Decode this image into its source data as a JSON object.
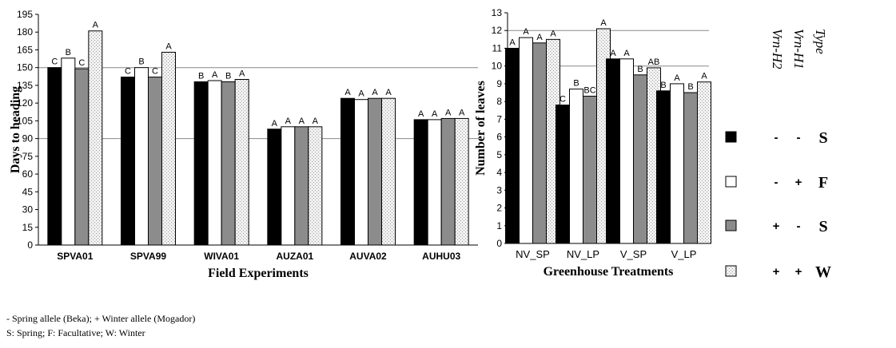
{
  "chart_data": [
    {
      "type": "bar",
      "xlabel": "Field Experiments",
      "ylabel": "Days to heading",
      "ylim": [
        0,
        195
      ],
      "yticks": [
        0,
        15,
        30,
        45,
        60,
        75,
        90,
        105,
        120,
        135,
        150,
        165,
        180,
        195
      ],
      "gridlines": [
        90,
        150
      ],
      "categories": [
        "SPVA01",
        "SPVA99",
        "WIVA01",
        "AUZA01",
        "AUVA02",
        "AUHU03"
      ],
      "series": [
        {
          "values": [
            150,
            142,
            138,
            98,
            124,
            106
          ],
          "letters": [
            "C",
            "C",
            "B",
            "A",
            "A",
            "A"
          ]
        },
        {
          "values": [
            158,
            150,
            139,
            100,
            123,
            106
          ],
          "letters": [
            "B",
            "B",
            "A",
            "A",
            "A",
            "A"
          ]
        },
        {
          "values": [
            149,
            142,
            138,
            100,
            124,
            107
          ],
          "letters": [
            "C",
            "C",
            "B",
            "A",
            "A",
            "A"
          ]
        },
        {
          "values": [
            181,
            163,
            140,
            100,
            124,
            107
          ],
          "letters": [
            "A",
            "A",
            "A",
            "A",
            "A",
            "A"
          ]
        }
      ]
    },
    {
      "type": "bar",
      "xlabel": "Greenhouse Treatments",
      "ylabel": "Number of leaves",
      "ylim": [
        0,
        13
      ],
      "yticks": [
        0,
        1,
        2,
        3,
        4,
        5,
        6,
        7,
        8,
        9,
        10,
        11,
        12,
        13
      ],
      "gridlines": [
        5,
        7,
        10,
        12
      ],
      "categories": [
        "NV_SP",
        "NV_LP",
        "V_SP",
        "V_LP"
      ],
      "series": [
        {
          "values": [
            11.0,
            7.8,
            10.4,
            8.6
          ],
          "letters": [
            "A",
            "C",
            "A",
            "B"
          ]
        },
        {
          "values": [
            11.6,
            8.7,
            10.4,
            9.0
          ],
          "letters": [
            "A",
            "B",
            "A",
            "A"
          ]
        },
        {
          "values": [
            11.3,
            8.3,
            9.5,
            8.5
          ],
          "letters": [
            "A",
            "BC",
            "B",
            "B"
          ]
        },
        {
          "values": [
            11.5,
            12.1,
            9.9,
            9.1
          ],
          "letters": [
            "A",
            "A",
            "AB",
            "A"
          ]
        }
      ]
    }
  ],
  "legend": {
    "headers": [
      "Vrn-H2",
      "Vrn-H1",
      "Type"
    ],
    "rows": [
      {
        "h2": "-",
        "h1": "-",
        "type": "S"
      },
      {
        "h2": "-",
        "h1": "+",
        "type": "F"
      },
      {
        "h2": "+",
        "h1": "-",
        "type": "S"
      },
      {
        "h2": "+",
        "h1": "+",
        "type": "W"
      }
    ]
  },
  "footnotes": [
    "- Spring allele (Beka); + Winter allele (Mogador)",
    "S: Spring; F: Facultative; W: Winter"
  ]
}
